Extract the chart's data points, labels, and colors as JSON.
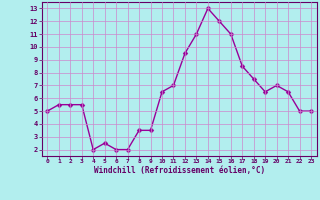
{
  "x": [
    0,
    1,
    2,
    3,
    4,
    5,
    6,
    7,
    8,
    9,
    10,
    11,
    12,
    13,
    14,
    15,
    16,
    17,
    18,
    19,
    20,
    21,
    22,
    23
  ],
  "y": [
    5,
    5.5,
    5.5,
    5.5,
    2,
    2.5,
    2,
    2,
    3.5,
    3.5,
    6.5,
    7,
    9.5,
    11,
    13,
    12,
    11,
    8.5,
    7.5,
    6.5,
    7,
    6.5,
    5,
    5
  ],
  "line_color": "#990099",
  "marker_color": "#990099",
  "bg_color": "#b2eeee",
  "grid_color": "#cc88cc",
  "xlabel": "Windchill (Refroidissement éolien,°C)",
  "xlabel_color": "#660066",
  "tick_color": "#660066",
  "ylim": [
    1.5,
    13.5
  ],
  "xlim": [
    -0.5,
    23.5
  ],
  "yticks": [
    2,
    3,
    4,
    5,
    6,
    7,
    8,
    9,
    10,
    11,
    12,
    13
  ],
  "xticks": [
    0,
    1,
    2,
    3,
    4,
    5,
    6,
    7,
    8,
    9,
    10,
    11,
    12,
    13,
    14,
    15,
    16,
    17,
    18,
    19,
    20,
    21,
    22,
    23
  ],
  "spine_color": "#660066",
  "marker_size": 2.5,
  "line_width": 1.0,
  "title_color": "#660066"
}
